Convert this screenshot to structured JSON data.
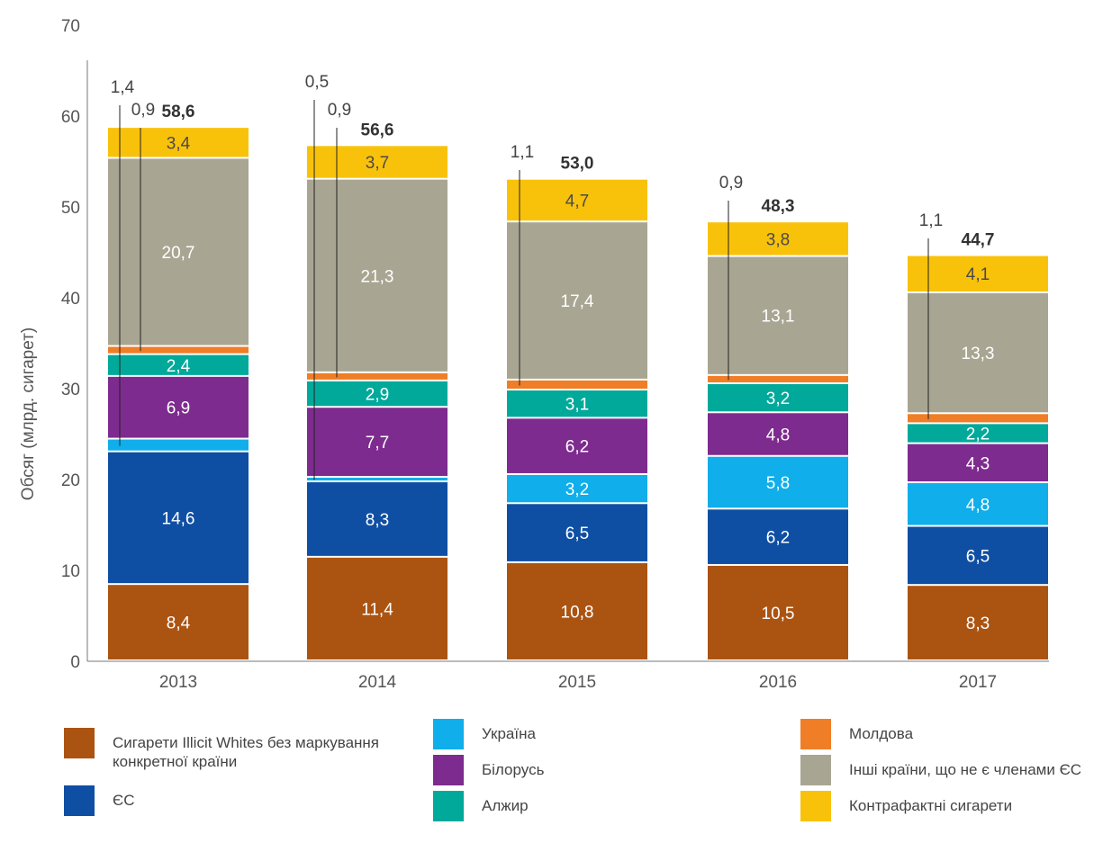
{
  "chart_data": {
    "type": "bar",
    "stacked": true,
    "ylabel": "Обсяг (млрд. сигарет)",
    "xlabel": "",
    "ylim": [
      0,
      70
    ],
    "yticks": [
      "0",
      "10",
      "20",
      "30",
      "40",
      "50",
      "60",
      "70"
    ],
    "categories": [
      "2013",
      "2014",
      "2015",
      "2016",
      "2017"
    ],
    "totals": [
      58.6,
      56.6,
      53.0,
      48.3,
      44.7
    ],
    "total_labels": [
      "58,6",
      "56,6",
      "53,0",
      "48,3",
      "44,7"
    ],
    "series": [
      {
        "name": "Сигарети Illicit Whites без маркування конкретної країни",
        "color": "#AB5412",
        "values": [
          8.4,
          11.4,
          10.8,
          10.5,
          8.3
        ],
        "labels": [
          "8,4",
          "11,4",
          "10,8",
          "10,5",
          "8,3"
        ],
        "label_style": "light"
      },
      {
        "name": "ЄС",
        "color": "#0F4FA3",
        "values": [
          14.6,
          8.3,
          6.5,
          6.2,
          6.5
        ],
        "labels": [
          "14,6",
          "8,3",
          "6,5",
          "6,2",
          "6,5"
        ],
        "label_style": "light"
      },
      {
        "name": "Україна",
        "color": "#10AEEA",
        "values": [
          1.4,
          0.5,
          3.2,
          5.8,
          4.8
        ],
        "labels": [
          "1,4",
          "0,5",
          "3,2",
          "5,8",
          "4,8"
        ],
        "label_style": "light",
        "callout": [
          true,
          true,
          false,
          false,
          false
        ]
      },
      {
        "name": "Білорусь",
        "color": "#7E2B8F",
        "values": [
          6.9,
          7.7,
          6.2,
          4.8,
          4.3
        ],
        "labels": [
          "6,9",
          "7,7",
          "6,2",
          "4,8",
          "4,3"
        ],
        "label_style": "light"
      },
      {
        "name": "Алжир",
        "color": "#00A99A",
        "values": [
          2.4,
          2.9,
          3.1,
          3.2,
          2.2
        ],
        "labels": [
          "2,4",
          "2,9",
          "3,1",
          "3,2",
          "2,2"
        ],
        "label_style": "light"
      },
      {
        "name": "Молдова",
        "color": "#F07E26",
        "values": [
          0.9,
          0.9,
          1.1,
          0.9,
          1.1
        ],
        "labels": [
          "0,9",
          "0,9",
          "1,1",
          "0,9",
          "1,1"
        ],
        "label_style": "light",
        "callout": [
          true,
          true,
          true,
          true,
          true
        ]
      },
      {
        "name": "Інші країни, що не є членами ЄС",
        "color": "#A8A692",
        "values": [
          20.7,
          21.3,
          17.4,
          13.1,
          13.3
        ],
        "labels": [
          "20,7",
          "21,3",
          "17,4",
          "13,1",
          "13,3"
        ],
        "label_style": "light"
      },
      {
        "name": "Контрафактні сигарети",
        "color": "#F9C20A",
        "values": [
          3.4,
          3.7,
          4.7,
          3.8,
          4.1
        ],
        "labels": [
          "3,4",
          "3,7",
          "4,7",
          "3,8",
          "4,1"
        ],
        "label_style": "dark"
      }
    ],
    "legend": {
      "placement": "bottom",
      "items": [
        {
          "label": "Сигарети Illicit Whites без маркування конкретної країни",
          "color": "#AB5412"
        },
        {
          "label": "ЄС",
          "color": "#0F4FA3"
        },
        {
          "label": "Україна",
          "color": "#10AEEA"
        },
        {
          "label": "Білорусь",
          "color": "#7E2B8F"
        },
        {
          "label": "Алжир",
          "color": "#00A99A"
        },
        {
          "label": "Молдова",
          "color": "#F07E26"
        },
        {
          "label": "Інші країни, що не є членами ЄС",
          "color": "#A8A692"
        },
        {
          "label": "Контрафактні сигарети",
          "color": "#F9C20A"
        }
      ]
    }
  }
}
